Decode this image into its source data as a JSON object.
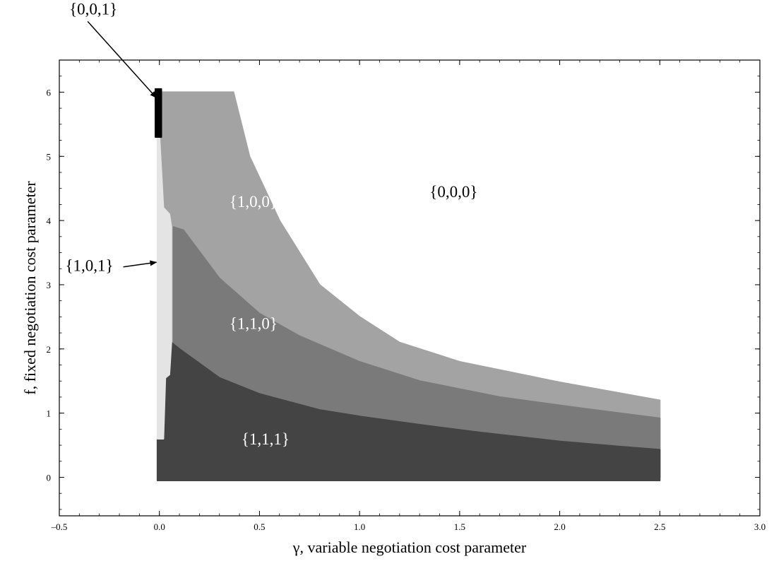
{
  "chart_data": {
    "type": "area",
    "title": "",
    "xlabel": "γ, variable negotiation cost parameter",
    "ylabel": "f, fixed negotiation cost parameter",
    "xlim": [
      -0.5,
      3.0
    ],
    "ylim": [
      -0.6,
      6.5
    ],
    "xticks": [
      -0.5,
      0.0,
      0.5,
      1.0,
      1.5,
      2.0,
      2.5,
      3.0
    ],
    "xtick_labels": [
      "–0.5",
      "0.0",
      "0.5",
      "1.0",
      "1.5",
      "2.0",
      "2.5",
      "3.0"
    ],
    "yticks": [
      0,
      1,
      2,
      3,
      4,
      5,
      6
    ],
    "ytick_labels": [
      "0",
      "1",
      "2",
      "3",
      "4",
      "5",
      "6"
    ],
    "grid": false,
    "regions": [
      {
        "name": "{1,0,0}",
        "color": "#a3a3a3",
        "label_color": "#ffffff",
        "label_at": [
          0.47,
          4.3
        ],
        "points": [
          [
            0.0,
            6.0
          ],
          [
            0.37,
            6.0
          ],
          [
            0.45,
            5.0
          ],
          [
            0.6,
            4.0
          ],
          [
            0.8,
            3.0
          ],
          [
            1.0,
            2.5
          ],
          [
            1.2,
            2.1
          ],
          [
            1.5,
            1.8
          ],
          [
            2.0,
            1.48
          ],
          [
            2.5,
            1.2
          ],
          [
            2.5,
            0
          ],
          [
            0.0,
            0
          ]
        ]
      },
      {
        "name": "{1,1,0}",
        "color": "#7a7a7a",
        "label_color": "#ffffff",
        "label_at": [
          0.47,
          2.4
        ],
        "points": [
          [
            0.07,
            3.9
          ],
          [
            0.12,
            3.85
          ],
          [
            0.3,
            3.1
          ],
          [
            0.5,
            2.55
          ],
          [
            0.7,
            2.2
          ],
          [
            1.0,
            1.8
          ],
          [
            1.3,
            1.5
          ],
          [
            1.7,
            1.25
          ],
          [
            2.1,
            1.08
          ],
          [
            2.5,
            0.92
          ],
          [
            2.5,
            0
          ],
          [
            0.07,
            0
          ]
        ]
      },
      {
        "name": "{1,1,1}",
        "color": "#444444",
        "label_color": "#ffffff",
        "label_at": [
          0.53,
          0.6
        ],
        "points": [
          [
            0.0,
            0.6
          ],
          [
            0.02,
            0.6
          ],
          [
            0.03,
            1.55
          ],
          [
            0.05,
            1.6
          ],
          [
            0.06,
            2.1
          ],
          [
            0.1,
            2.0
          ],
          [
            0.3,
            1.55
          ],
          [
            0.5,
            1.3
          ],
          [
            0.8,
            1.05
          ],
          [
            1.0,
            0.95
          ],
          [
            1.3,
            0.82
          ],
          [
            1.6,
            0.7
          ],
          [
            2.0,
            0.56
          ],
          [
            2.3,
            0.48
          ],
          [
            2.5,
            0.43
          ],
          [
            2.5,
            -0.05
          ],
          [
            -0.01,
            -0.05
          ],
          [
            -0.01,
            0.6
          ]
        ]
      },
      {
        "name": "{1,0,1}",
        "color": "#e4e4e4",
        "label_color": "#000000",
        "label_at": [
          -0.35,
          3.3
        ],
        "points": [
          [
            -0.01,
            5.35
          ],
          [
            0.0,
            5.35
          ],
          [
            0.02,
            4.2
          ],
          [
            0.05,
            4.1
          ],
          [
            0.06,
            3.9
          ],
          [
            0.06,
            2.1
          ],
          [
            0.05,
            1.6
          ],
          [
            0.03,
            1.55
          ],
          [
            0.02,
            0.6
          ],
          [
            -0.01,
            0.6
          ]
        ]
      },
      {
        "name": "{0,0,1}",
        "color": "#000000",
        "label_color": "#000000",
        "label_at": [
          -0.33,
          7.3
        ],
        "points": [
          [
            -0.02,
            6.05
          ],
          [
            0.01,
            6.05
          ],
          [
            0.01,
            5.3
          ],
          [
            -0.02,
            5.3
          ]
        ]
      },
      {
        "name": "{0,0,0}",
        "color": "#ffffff",
        "label_color": "#000000",
        "label_at": [
          1.47,
          4.45
        ],
        "points": []
      }
    ]
  }
}
